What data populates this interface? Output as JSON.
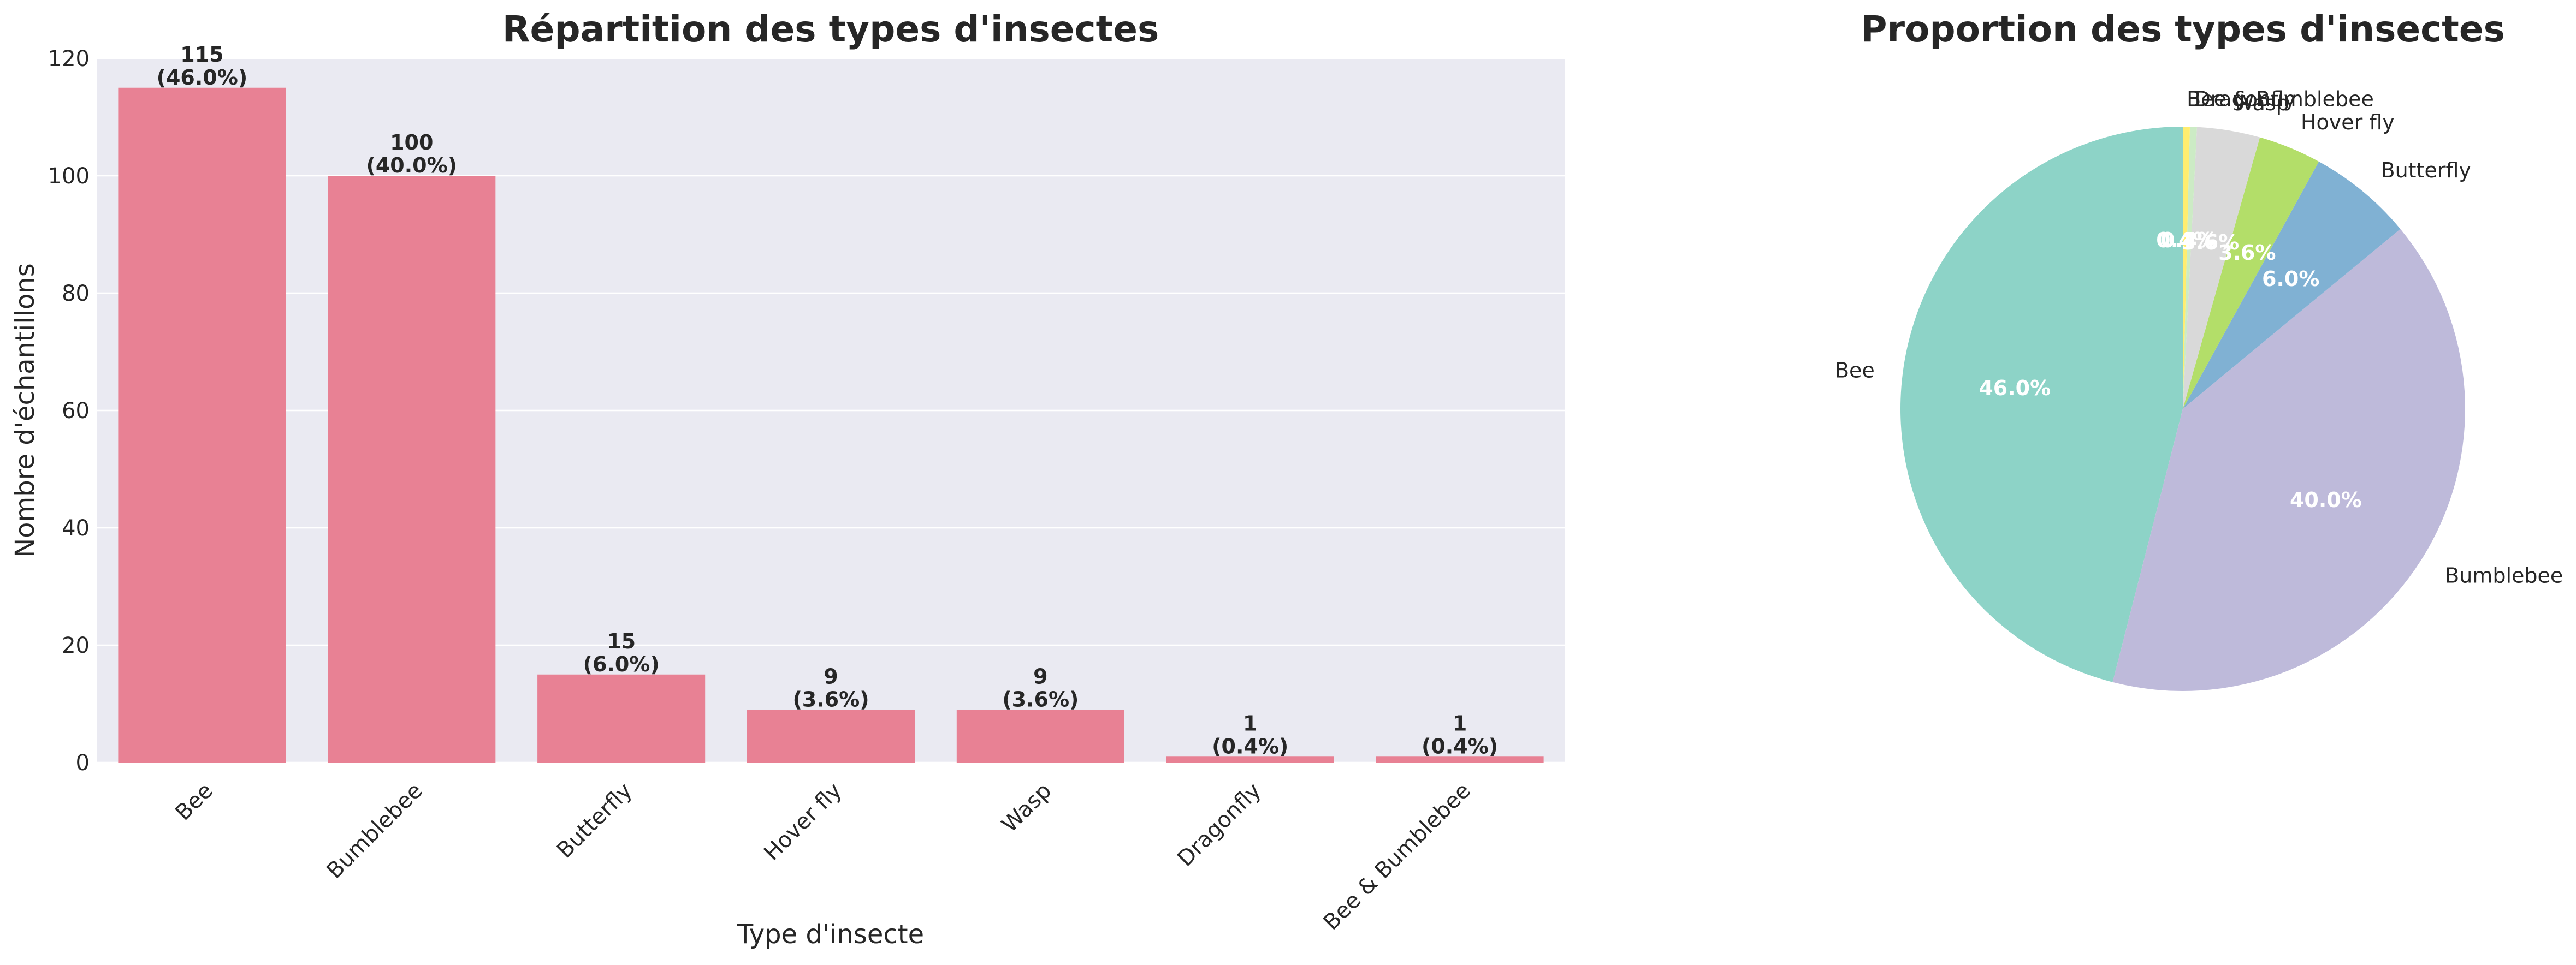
{
  "chart_data": [
    {
      "type": "bar",
      "title": "Répartition des types d'insectes",
      "xlabel": "Type d'insecte",
      "ylabel": "Nombre d'échantillons",
      "categories": [
        "Bee",
        "Bumblebee",
        "Butterfly",
        "Hover fly",
        "Wasp",
        "Dragonfly",
        "Bee & Bumblebee"
      ],
      "values": [
        115,
        100,
        15,
        9,
        9,
        1,
        1
      ],
      "value_labels": [
        "115",
        "100",
        "15",
        "9",
        "9",
        "1",
        "1"
      ],
      "percent_labels": [
        "(46.0%)",
        "(40.0%)",
        "(6.0%)",
        "(3.6%)",
        "(3.6%)",
        "(0.4%)",
        "(0.4%)"
      ],
      "ylim": [
        0,
        120
      ],
      "yticks": [
        0,
        20,
        40,
        60,
        80,
        100,
        120
      ],
      "ytick_labels": [
        "0",
        "20",
        "40",
        "60",
        "80",
        "100",
        "120"
      ],
      "grid": true,
      "bar_color": "#e88194",
      "background_color": "#eaeaf2"
    },
    {
      "type": "pie",
      "title": "Proportion des types d'insectes",
      "labels": [
        "Bee",
        "Bumblebee",
        "Butterfly",
        "Hover fly",
        "Wasp",
        "Dragonfly",
        "Bee & Bumblebee"
      ],
      "values": [
        115,
        100,
        15,
        9,
        9,
        1,
        1
      ],
      "percent_labels": [
        "46.0%",
        "40.0%",
        "6.0%",
        "3.6%",
        "3.6%",
        "0.4%",
        "0.4%"
      ],
      "colors": [
        "#8dd3c7",
        "#bebada",
        "#80b1d3",
        "#b3de69",
        "#d9d9d9",
        "#ccebc5",
        "#ffed6f"
      ],
      "start_angle_deg": 90,
      "direction": "counterclockwise"
    }
  ]
}
